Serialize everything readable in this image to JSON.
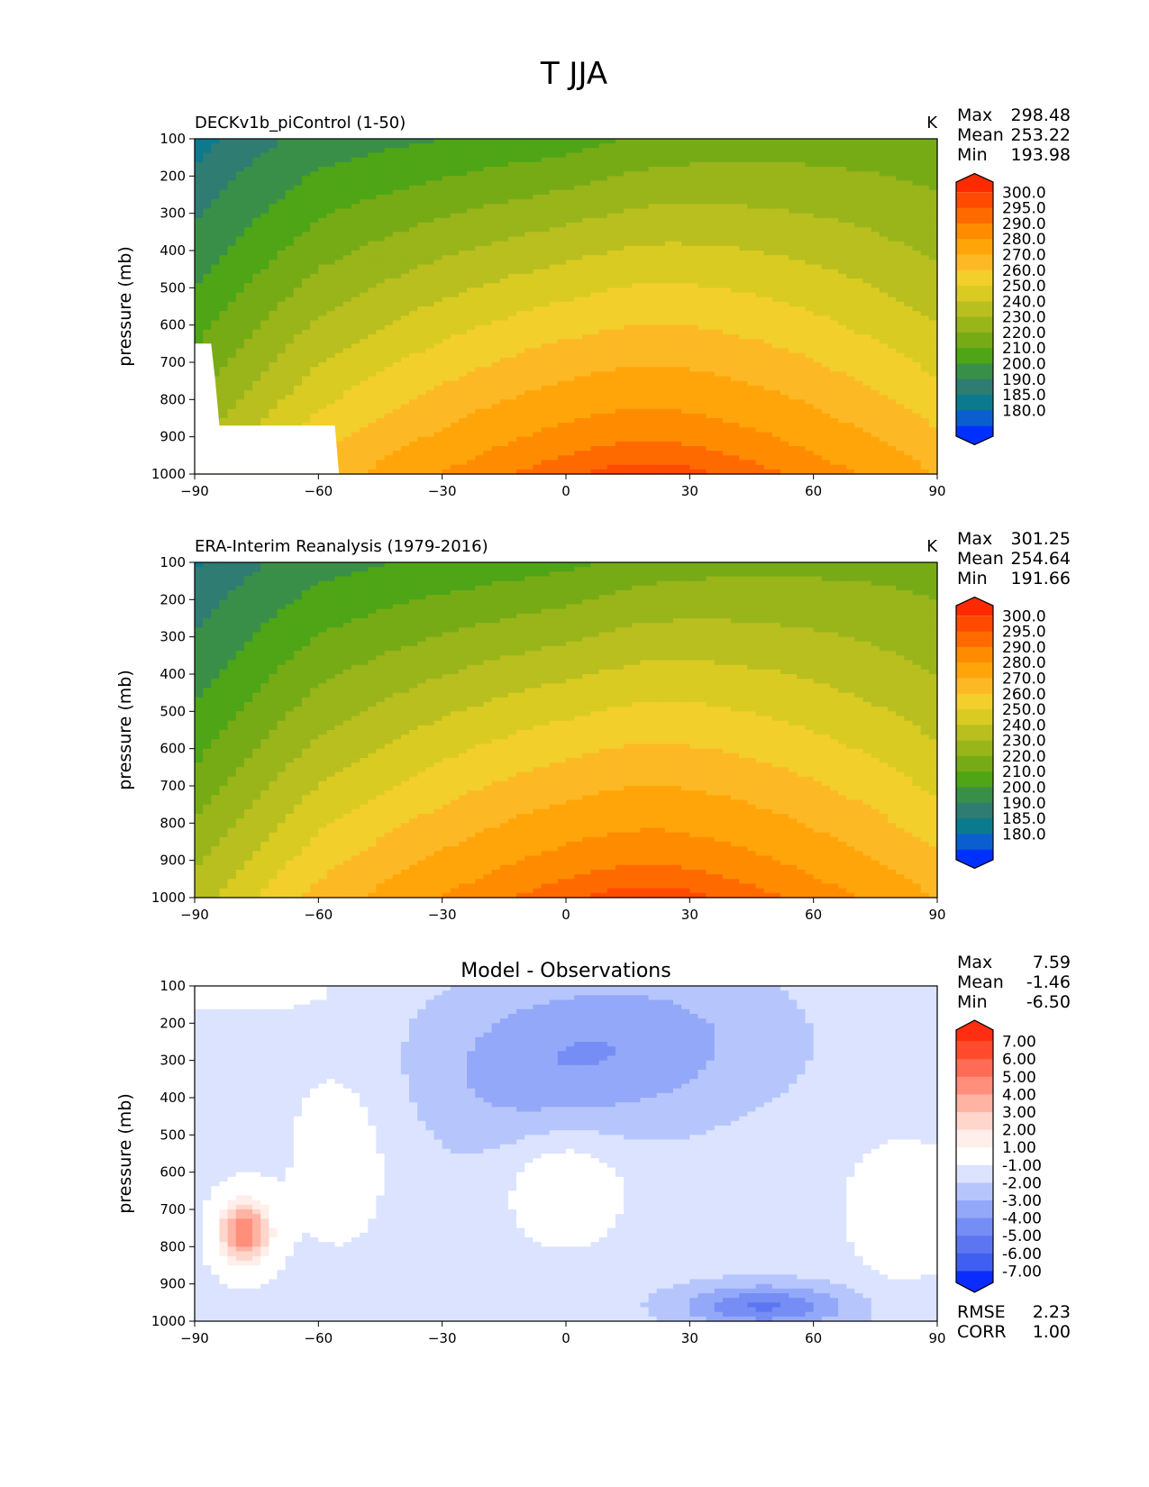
{
  "figure_title": "T JJA",
  "colors": {
    "abs_levels": [
      "#ff2a00",
      "#ff4a00",
      "#ff6a00",
      "#ff8c00",
      "#ffa50a",
      "#fdb925",
      "#f2cf2a",
      "#d9cb22",
      "#b8bf1e",
      "#99b51a",
      "#77ab15",
      "#4ea516",
      "#3a8f48",
      "#2e7c72",
      "#0b7a8f",
      "#0b5ecf",
      "#0030ff"
    ],
    "diff_levels": [
      "#ff2e10",
      "#ff4a2e",
      "#ff6b55",
      "#ff8e7a",
      "#ffb3a3",
      "#ffd5cc",
      "#ffeee9",
      "#ffffff",
      "#dbe3ff",
      "#b6c6fd",
      "#93a8f8",
      "#758df5",
      "#5c76f2",
      "#3f5ff0",
      "#0b2cff"
    ]
  },
  "chart_data": [
    {
      "type": "heatmap",
      "id": "model",
      "title": "DECKv1b_piControl (1-50)",
      "units": "K",
      "xlabel": "",
      "ylabel": "pressure (mb)",
      "xlim": [
        -90,
        90
      ],
      "ylim": [
        100,
        1000
      ],
      "yinverted": true,
      "xticks": [
        "−90",
        "−60",
        "−30",
        "0",
        "30",
        "60",
        "90"
      ],
      "xtick_values": [
        -90,
        -60,
        -30,
        0,
        30,
        60,
        90
      ],
      "yticks": [
        "100",
        "200",
        "300",
        "400",
        "500",
        "600",
        "700",
        "800",
        "900",
        "1000"
      ],
      "ytick_values": [
        100,
        200,
        300,
        400,
        500,
        600,
        700,
        800,
        900,
        1000
      ],
      "stats": [
        {
          "label": "Max",
          "value": "298.48"
        },
        {
          "label": "Mean",
          "value": "253.22"
        },
        {
          "label": "Min",
          "value": "193.98"
        }
      ],
      "colorbar_levels": [
        "300.0",
        "295.0",
        "290.0",
        "280.0",
        "270.0",
        "260.0",
        "250.0",
        "240.0",
        "230.0",
        "220.0",
        "210.0",
        "200.0",
        "190.0",
        "185.0",
        "180.0"
      ],
      "surface_mask": [
        [
          -90,
          650
        ],
        [
          -86,
          650
        ],
        [
          -85,
          750
        ],
        [
          -84,
          870
        ],
        [
          -56,
          870
        ],
        [
          -55,
          1000
        ],
        [
          -90,
          1000
        ]
      ]
    },
    {
      "type": "heatmap",
      "id": "obs",
      "title": "ERA-Interim Reanalysis (1979-2016)",
      "units": "K",
      "xlabel": "",
      "ylabel": "pressure (mb)",
      "xlim": [
        -90,
        90
      ],
      "ylim": [
        100,
        1000
      ],
      "yinverted": true,
      "xticks": [
        "−90",
        "−60",
        "−30",
        "0",
        "30",
        "60",
        "90"
      ],
      "xtick_values": [
        -90,
        -60,
        -30,
        0,
        30,
        60,
        90
      ],
      "yticks": [
        "100",
        "200",
        "300",
        "400",
        "500",
        "600",
        "700",
        "800",
        "900",
        "1000"
      ],
      "ytick_values": [
        100,
        200,
        300,
        400,
        500,
        600,
        700,
        800,
        900,
        1000
      ],
      "stats": [
        {
          "label": "Max",
          "value": "301.25"
        },
        {
          "label": "Mean",
          "value": "254.64"
        },
        {
          "label": "Min",
          "value": "191.66"
        }
      ],
      "colorbar_levels": [
        "300.0",
        "295.0",
        "290.0",
        "280.0",
        "270.0",
        "260.0",
        "250.0",
        "240.0",
        "230.0",
        "220.0",
        "210.0",
        "200.0",
        "190.0",
        "185.0",
        "180.0"
      ]
    },
    {
      "type": "heatmap",
      "id": "diff",
      "title": "Model - Observations",
      "units": "",
      "xlabel": "",
      "ylabel": "pressure (mb)",
      "xlim": [
        -90,
        90
      ],
      "ylim": [
        100,
        1000
      ],
      "yinverted": true,
      "xticks": [
        "−90",
        "−60",
        "−30",
        "0",
        "30",
        "60",
        "90"
      ],
      "xtick_values": [
        -90,
        -60,
        -30,
        0,
        30,
        60,
        90
      ],
      "yticks": [
        "100",
        "200",
        "300",
        "400",
        "500",
        "600",
        "700",
        "800",
        "900",
        "1000"
      ],
      "ytick_values": [
        100,
        200,
        300,
        400,
        500,
        600,
        700,
        800,
        900,
        1000
      ],
      "stats": [
        {
          "label": "Max",
          "value": "7.59"
        },
        {
          "label": "Mean",
          "value": "-1.46"
        },
        {
          "label": "Min",
          "value": "-6.50"
        }
      ],
      "colorbar_levels": [
        "7.00",
        "6.00",
        "5.00",
        "4.00",
        "3.00",
        "2.00",
        "1.00",
        "-1.00",
        "-2.00",
        "-3.00",
        "-4.00",
        "-5.00",
        "-6.00",
        "-7.00"
      ],
      "bottom_stats": [
        {
          "label": "RMSE",
          "value": "2.23"
        },
        {
          "label": "CORR",
          "value": "1.00"
        }
      ]
    }
  ]
}
